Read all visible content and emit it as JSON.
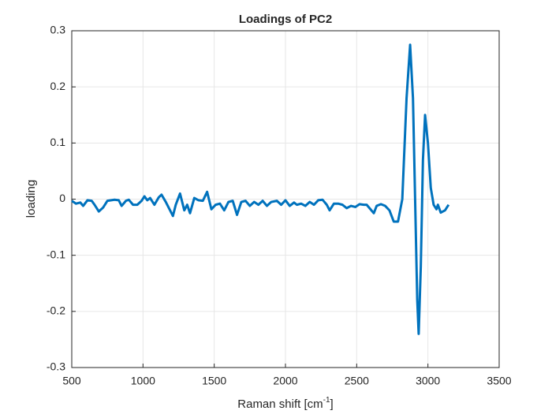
{
  "chart_data": {
    "type": "line",
    "title": "Loadings of PC2",
    "xlabel": [
      "Raman shift [cm",
      "-1",
      "]"
    ],
    "ylabel": "loading",
    "xlim": [
      500,
      3500
    ],
    "xticks": [
      500,
      1000,
      1500,
      2000,
      2500,
      3000,
      3500
    ],
    "ylim": [
      -0.3,
      0.3
    ],
    "yticks": [
      -0.3,
      -0.2,
      -0.1,
      0,
      0.1,
      0.2,
      0.3
    ],
    "grid": true,
    "x": [
      500,
      530,
      560,
      580,
      610,
      640,
      660,
      690,
      720,
      750,
      800,
      830,
      850,
      880,
      900,
      930,
      960,
      990,
      1010,
      1030,
      1050,
      1080,
      1110,
      1130,
      1160,
      1190,
      1210,
      1230,
      1260,
      1290,
      1310,
      1330,
      1360,
      1390,
      1420,
      1450,
      1480,
      1510,
      1540,
      1570,
      1600,
      1630,
      1660,
      1690,
      1720,
      1750,
      1780,
      1810,
      1840,
      1870,
      1900,
      1940,
      1970,
      2000,
      2030,
      2060,
      2080,
      2110,
      2140,
      2170,
      2200,
      2230,
      2260,
      2290,
      2310,
      2340,
      2370,
      2400,
      2430,
      2460,
      2490,
      2520,
      2550,
      2570,
      2590,
      2620,
      2640,
      2670,
      2700,
      2730,
      2760,
      2790,
      2820,
      2850,
      2875,
      2895,
      2910,
      2925,
      2935,
      2950,
      2965,
      2980,
      3000,
      3020,
      3040,
      3060,
      3070,
      3090,
      3120,
      3145
    ],
    "series": [
      {
        "color": "#0072bd",
        "values": [
          -0.003,
          -0.008,
          -0.006,
          -0.012,
          -0.002,
          -0.003,
          -0.01,
          -0.022,
          -0.015,
          -0.003,
          -0.001,
          -0.002,
          -0.012,
          -0.003,
          -0.001,
          -0.01,
          -0.01,
          -0.003,
          0.005,
          -0.002,
          0.002,
          -0.01,
          0.003,
          0.008,
          -0.005,
          -0.02,
          -0.03,
          -0.01,
          0.01,
          -0.02,
          -0.01,
          -0.025,
          0.002,
          -0.002,
          -0.003,
          0.013,
          -0.018,
          -0.01,
          -0.008,
          -0.02,
          -0.005,
          -0.003,
          -0.028,
          -0.005,
          -0.003,
          -0.012,
          -0.005,
          -0.01,
          -0.003,
          -0.012,
          -0.005,
          -0.003,
          -0.01,
          -0.002,
          -0.012,
          -0.006,
          -0.01,
          -0.008,
          -0.012,
          -0.005,
          -0.01,
          -0.002,
          -0.001,
          -0.01,
          -0.02,
          -0.008,
          -0.008,
          -0.01,
          -0.016,
          -0.012,
          -0.014,
          -0.009,
          -0.01,
          -0.01,
          -0.016,
          -0.025,
          -0.012,
          -0.009,
          -0.012,
          -0.02,
          -0.04,
          -0.04,
          0.0,
          0.18,
          0.275,
          0.18,
          0.0,
          -0.18,
          -0.24,
          -0.12,
          0.07,
          0.15,
          0.1,
          0.02,
          -0.01,
          -0.018,
          -0.01,
          -0.024,
          -0.02,
          -0.01
        ]
      }
    ]
  }
}
